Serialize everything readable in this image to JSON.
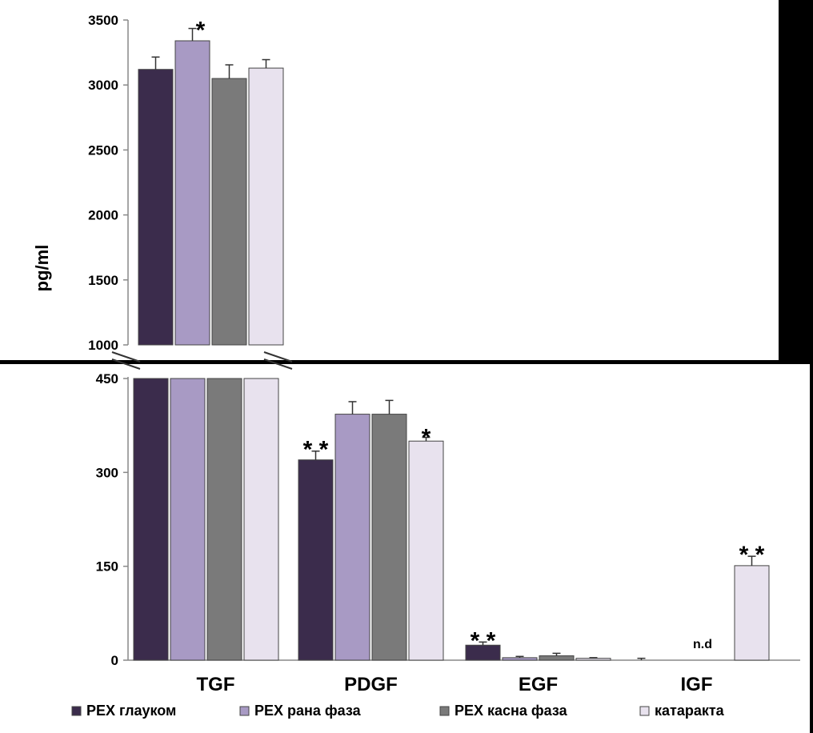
{
  "chart_data": {
    "type": "bar",
    "ylabel": "pg/ml",
    "categories": [
      "TGF",
      "PDGF",
      "EGF",
      "IGF"
    ],
    "axis_break": true,
    "upper_panel": {
      "ylim": [
        1000,
        3500
      ],
      "ticks": [
        "1000",
        "1500",
        "2000",
        "2500",
        "3000",
        "3500"
      ]
    },
    "lower_panel": {
      "ylim": [
        0,
        450
      ],
      "ticks": [
        "0",
        "150",
        "300",
        "450"
      ]
    },
    "series": [
      {
        "name": "PEX глауком",
        "color": "#3b2c4c",
        "values": [
          3120,
          320,
          24,
          0
        ],
        "errors": [
          95,
          14,
          5,
          3
        ]
      },
      {
        "name": "PEX рана фаза",
        "color": "#a89ac4",
        "values": [
          3340,
          393,
          4,
          0
        ],
        "errors": [
          95,
          20,
          2,
          0
        ]
      },
      {
        "name": "PEX касна фаза",
        "color": "#7a7a7a",
        "values": [
          3050,
          393,
          7,
          0
        ],
        "errors": [
          105,
          22,
          4,
          0
        ]
      },
      {
        "name": "катаракта",
        "color": "#e8e2ee",
        "values": [
          3130,
          350,
          3,
          151
        ],
        "errors": [
          65,
          6,
          1,
          15
        ]
      }
    ],
    "annotations": [
      {
        "category": "TGF",
        "series": 1,
        "text": "*"
      },
      {
        "category": "PDGF",
        "series": 0,
        "text": "* *"
      },
      {
        "category": "PDGF",
        "series": 3,
        "text": "*"
      },
      {
        "category": "EGF",
        "series": 0,
        "text": "* *"
      },
      {
        "category": "IGF",
        "series": 1,
        "text": "n.d"
      },
      {
        "category": "IGF",
        "series": 3,
        "text": "* *"
      }
    ],
    "legend_position": "bottom"
  }
}
